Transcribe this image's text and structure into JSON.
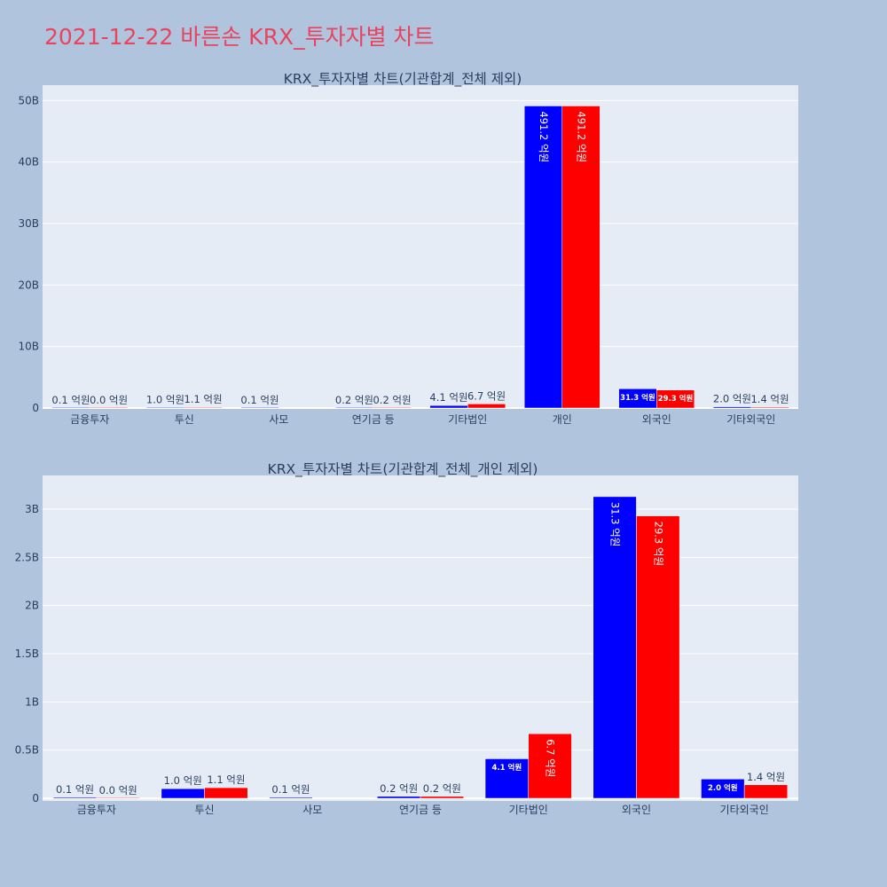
{
  "page_title": "2021-12-22 바른손 KRX_투자자별 차트",
  "colors": {
    "series_a": "#0000ff",
    "series_b": "#ff0000",
    "plot_bg": "#e5ecf6",
    "page_bg": "#b0c4de",
    "title": "#e8445f"
  },
  "chart_data": [
    {
      "type": "bar",
      "title": "KRX_투자자별 차트(기관합계_전체 제외)",
      "categories": [
        "금융투자",
        "투신",
        "사모",
        "연기금 등",
        "기타법인",
        "개인",
        "외국인",
        "기타외국인"
      ],
      "series": [
        {
          "values": [
            10000000,
            100000000,
            10000000,
            20000000,
            410000000,
            49120000000,
            3130000000,
            200000000
          ],
          "labels": [
            "0.1 억원",
            "1.0 억원",
            "0.1 억원",
            "0.2 억원",
            "4.1 억원",
            "491.2 억원",
            "31.3 억원",
            "2.0 억원"
          ]
        },
        {
          "values": [
            0,
            110000000,
            null,
            20000000,
            670000000,
            49120000000,
            2930000000,
            140000000
          ],
          "labels": [
            "0.0 억원",
            "1.1 억원",
            "",
            "0.2 억원",
            "6.7 억원",
            "491.2 억원",
            "29.3 억원",
            "1.4 억원"
          ]
        }
      ],
      "ylim": [
        0,
        52500000000
      ],
      "ytick_values": [
        0,
        10000000000,
        20000000000,
        30000000000,
        40000000000,
        50000000000
      ],
      "ytick_labels": [
        "0",
        "10B",
        "20B",
        "30B",
        "40B",
        "50B"
      ],
      "grid": true,
      "xlabel": "",
      "ylabel": ""
    },
    {
      "type": "bar",
      "title": "KRX_투자자별 차트(기관합계_전체_개인 제외)",
      "categories": [
        "금융투자",
        "투신",
        "사모",
        "연기금 등",
        "기타법인",
        "외국인",
        "기타외국인"
      ],
      "series": [
        {
          "values": [
            10000000,
            100000000,
            10000000,
            20000000,
            410000000,
            3130000000,
            200000000
          ],
          "labels": [
            "0.1 억원",
            "1.0 억원",
            "0.1 억원",
            "0.2 억원",
            "4.1 억원",
            "31.3 억원",
            "2.0 억원"
          ]
        },
        {
          "values": [
            0,
            110000000,
            null,
            20000000,
            670000000,
            2930000000,
            140000000
          ],
          "labels": [
            "0.0 억원",
            "1.1 억원",
            "",
            "0.2 억원",
            "6.7 억원",
            "29.3 억원",
            "1.4 억원"
          ]
        }
      ],
      "ylim": [
        0,
        3350000000
      ],
      "ytick_values": [
        0,
        500000000,
        1000000000,
        1500000000,
        2000000000,
        2500000000,
        3000000000
      ],
      "ytick_labels": [
        "0",
        "0.5B",
        "1B",
        "1.5B",
        "2B",
        "2.5B",
        "3B"
      ],
      "grid": true,
      "xlabel": "",
      "ylabel": ""
    }
  ]
}
